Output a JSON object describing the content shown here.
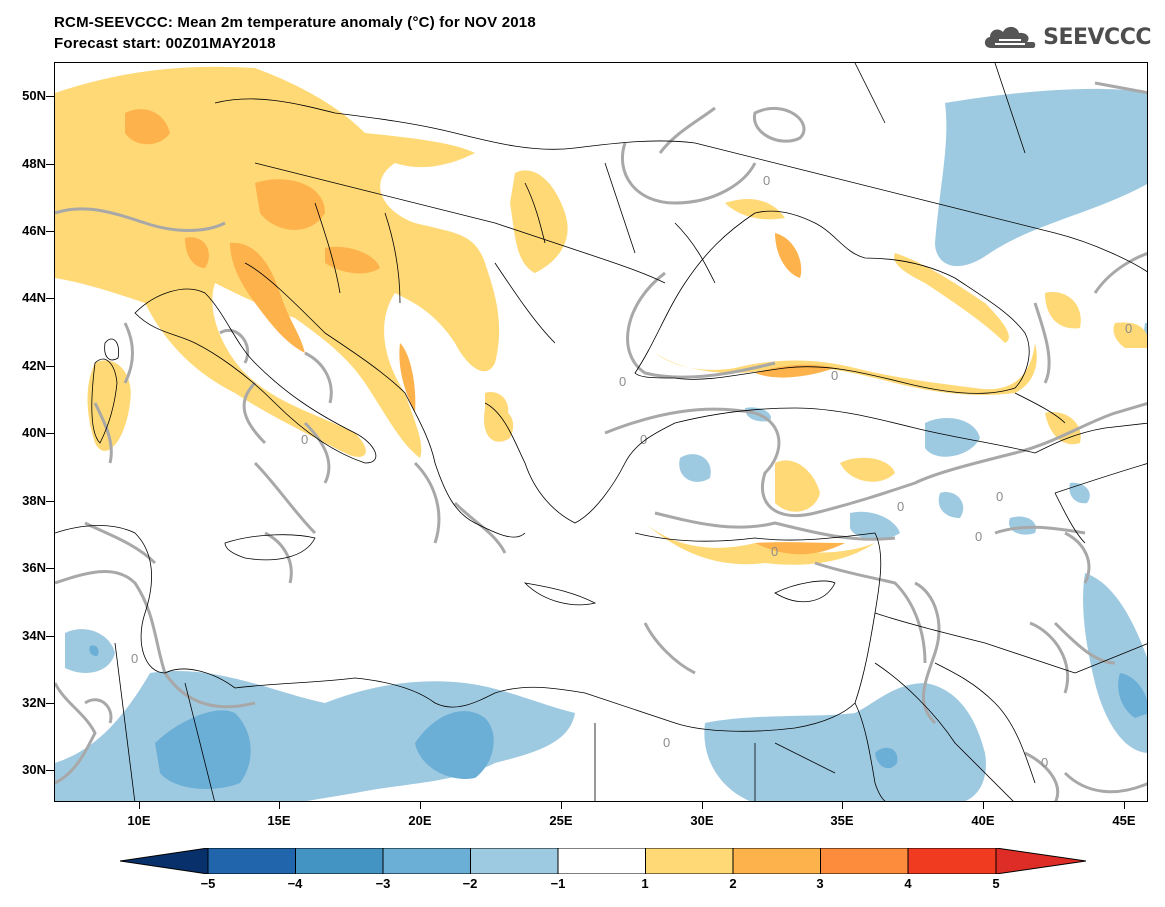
{
  "header": {
    "title_line1": "RCM-SEEVCCC: Mean 2m temperature anomaly (°C) for NOV 2018",
    "title_line2": "Forecast start: 00Z01MAY2018"
  },
  "logo": {
    "text": "SEEVCCC",
    "icon": "cloud-icon"
  },
  "map": {
    "lat_labels": [
      "50N",
      "48N",
      "46N",
      "44N",
      "42N",
      "40N",
      "38N",
      "36N",
      "34N",
      "32N",
      "30N"
    ],
    "lon_labels": [
      "10E",
      "15E",
      "20E",
      "25E",
      "30E",
      "35E",
      "40E",
      "45E"
    ],
    "contour_label": "0",
    "colors": {
      "-5": "#08306b",
      "-4": "#2166ac",
      "-3": "#4393c3",
      "-2": "#6baed6",
      "-1": "#9ecae1",
      "0": "#ffffff",
      "1": "#fed976",
      "2": "#feb24c",
      "3": "#fd8d3c",
      "4": "#f03b20",
      "5": "#bd0026",
      "contour": "#a0a0a0",
      "borders": "#000000"
    }
  },
  "colorbar": {
    "labels": [
      "−5",
      "−4",
      "−3",
      "−2",
      "−1",
      "1",
      "2",
      "3",
      "4",
      "5"
    ],
    "colors": [
      "#08306b",
      "#2166ac",
      "#4393c3",
      "#6baed6",
      "#9ecae1",
      "#ffffff",
      "#fed976",
      "#feb24c",
      "#fd8d3c",
      "#f03b20",
      "#de2d26",
      "#a50f15"
    ]
  }
}
